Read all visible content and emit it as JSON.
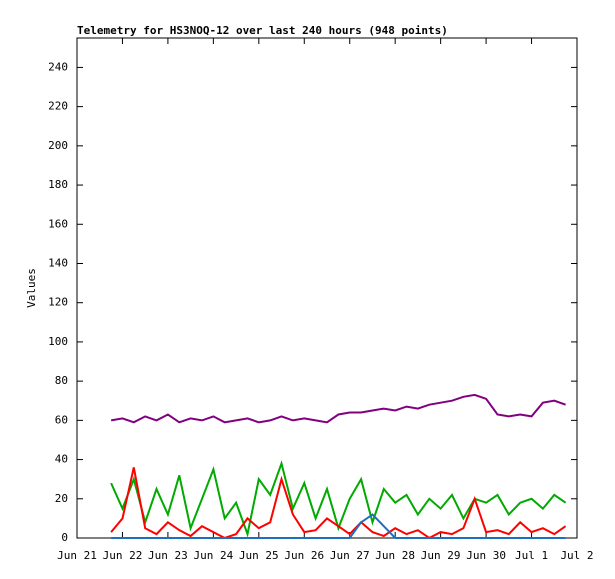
{
  "chart_data": {
    "type": "line",
    "title": "Telemetry for HS3NOQ-12 over last 240 hours (948 points)",
    "y_label": "Values",
    "x": [
      0.75,
      1,
      1.25,
      1.5,
      1.75,
      2,
      2.25,
      2.5,
      2.75,
      3,
      3.25,
      3.5,
      3.75,
      4,
      4.25,
      4.5,
      4.75,
      5,
      5.25,
      5.5,
      5.75,
      6,
      6.25,
      6.5,
      6.75,
      7,
      7.25,
      7.5,
      7.75,
      8,
      8.25,
      8.5,
      8.75,
      9,
      9.25,
      9.5,
      9.75,
      10,
      10.25,
      10.5,
      10.75
    ],
    "series": [
      {
        "color": "#00aa00",
        "values": [
          28,
          15,
          30,
          8,
          25,
          12,
          32,
          5,
          20,
          35,
          10,
          18,
          2,
          30,
          22,
          38,
          15,
          28,
          10,
          25,
          5,
          20,
          30,
          8,
          25,
          18,
          22,
          12,
          20,
          15,
          22,
          10,
          20,
          18,
          22,
          12,
          18,
          20,
          15,
          22,
          18
        ]
      },
      {
        "color": "#ff0000",
        "values": [
          3,
          10,
          36,
          5,
          2,
          8,
          4,
          1,
          6,
          3,
          0,
          2,
          10,
          5,
          8,
          30,
          12,
          3,
          4,
          10,
          6,
          2,
          8,
          3,
          1,
          5,
          2,
          4,
          0,
          3,
          2,
          5,
          20,
          3,
          4,
          2,
          8,
          3,
          5,
          2,
          6
        ]
      },
      {
        "color": "#1f6fbf",
        "values": [
          0,
          0,
          0,
          0,
          0,
          0,
          0,
          0,
          0,
          0,
          0,
          0,
          0,
          0,
          0,
          0,
          0,
          0,
          0,
          0,
          0,
          0,
          8,
          12,
          6,
          0,
          0,
          0,
          0,
          0,
          0,
          0,
          0,
          0,
          0,
          0,
          0,
          0,
          0,
          0,
          0
        ]
      },
      {
        "color": "#800080",
        "values": [
          60,
          61,
          59,
          62,
          60,
          63,
          59,
          61,
          60,
          62,
          59,
          60,
          61,
          59,
          60,
          62,
          60,
          61,
          60,
          59,
          63,
          64,
          64,
          65,
          66,
          65,
          67,
          66,
          68,
          69,
          70,
          72,
          73,
          71,
          63,
          62,
          63,
          62,
          69,
          70,
          68
        ]
      }
    ],
    "xlim": [
      0,
      11
    ],
    "xticks": [
      {
        "value": 0,
        "label": "Jun 21"
      },
      {
        "value": 1,
        "label": "Jun 22"
      },
      {
        "value": 2,
        "label": "Jun 23"
      },
      {
        "value": 3,
        "label": "Jun 24"
      },
      {
        "value": 4,
        "label": "Jun 25"
      },
      {
        "value": 5,
        "label": "Jun 26"
      },
      {
        "value": 6,
        "label": "Jun 27"
      },
      {
        "value": 7,
        "label": "Jun 28"
      },
      {
        "value": 8,
        "label": "Jun 29"
      },
      {
        "value": 9,
        "label": "Jun 30"
      },
      {
        "value": 10,
        "label": "Jul 1"
      },
      {
        "value": 11,
        "label": "Jul 2"
      }
    ],
    "ylim": [
      0,
      255
    ],
    "yticks": [
      0,
      20,
      40,
      60,
      80,
      100,
      120,
      140,
      160,
      180,
      200,
      220,
      240
    ]
  }
}
